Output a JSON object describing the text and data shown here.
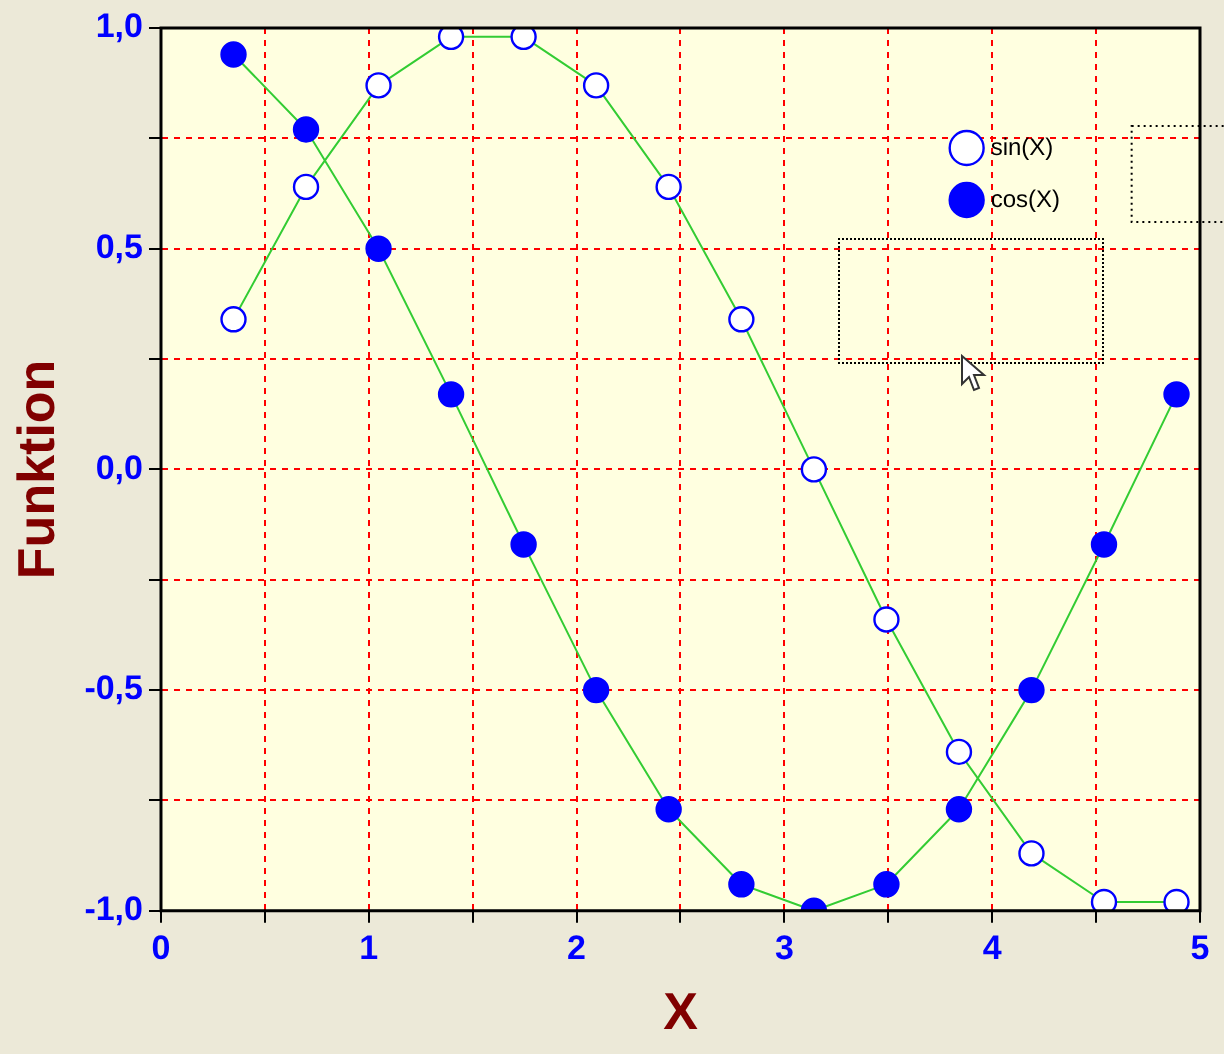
{
  "chart_data": {
    "type": "line",
    "xlabel": "X",
    "ylabel": "Funktion",
    "x": [
      0.349,
      0.698,
      1.047,
      1.396,
      1.745,
      2.094,
      2.443,
      2.793,
      3.142,
      3.491,
      3.84,
      4.189,
      4.538,
      4.887
    ],
    "series": [
      {
        "name": "sin(X)",
        "color": "#0000ff",
        "values": [
          0.34,
          0.64,
          0.87,
          0.98,
          0.98,
          0.87,
          0.64,
          0.34,
          0.0,
          -0.34,
          -0.64,
          -0.87,
          -0.98,
          -0.98
        ]
      },
      {
        "name": "cos(X)",
        "color": "#0000ff",
        "values": [
          0.94,
          0.77,
          0.5,
          0.17,
          -0.17,
          -0.5,
          -0.77,
          -0.94,
          -1.0,
          -0.94,
          -0.77,
          -0.5,
          -0.17,
          0.17
        ]
      }
    ],
    "xlim": [
      0,
      5
    ],
    "xticks": [
      0,
      {
        "value": 0.5,
        "label": null
      },
      1,
      {
        "value": 1.5,
        "label": null
      },
      2,
      {
        "value": 2.5,
        "label": null
      },
      3,
      {
        "value": 3.5,
        "label": null
      },
      4,
      {
        "value": 4.5,
        "label": null
      },
      5
    ],
    "ylim": [
      -1,
      1
    ],
    "yticks": [
      {
        "value": -1,
        "label": "-1,0"
      },
      {
        "value": -0.75,
        "label": null
      },
      {
        "value": -0.5,
        "label": "-0,5"
      },
      {
        "value": -0.25,
        "label": null
      },
      {
        "value": 0,
        "label": "0,0"
      },
      {
        "value": 0.25,
        "label": null
      },
      {
        "value": 0.5,
        "label": "0,5"
      },
      {
        "value": 0.75,
        "label": null
      },
      {
        "value": 1,
        "label": "1,0"
      }
    ],
    "grid": true,
    "legend": "top right",
    "marker": "circle",
    "line_style": "solid"
  }
}
